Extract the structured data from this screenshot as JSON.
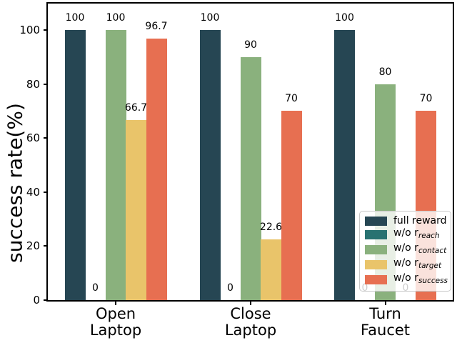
{
  "chart_data": {
    "type": "bar",
    "title": "",
    "xlabel": "",
    "ylabel": "success rate(%)",
    "ylim": [
      0,
      110
    ],
    "yticks": [
      0,
      20,
      40,
      60,
      80,
      100
    ],
    "grid": false,
    "legend_position": "lower right",
    "categories": [
      [
        "Open",
        "Laptop"
      ],
      [
        "Close",
        "Laptop"
      ],
      [
        "Turn",
        "Faucet"
      ]
    ],
    "series": [
      {
        "name": "full reward",
        "name_sub": "",
        "color": "#264653",
        "values": [
          100,
          100,
          100
        ],
        "value_labels": [
          "100",
          "100",
          "100"
        ]
      },
      {
        "name": "w/o r",
        "name_sub": "reach",
        "color": "#287271",
        "values": [
          0,
          0,
          0
        ],
        "value_labels": [
          "0",
          "0",
          "0"
        ]
      },
      {
        "name": "w/o r",
        "name_sub": "contact",
        "color": "#8ab17d",
        "values": [
          100,
          90,
          80
        ],
        "value_labels": [
          "100",
          "90",
          "80"
        ]
      },
      {
        "name": "w/o r",
        "name_sub": "target",
        "color": "#e9c46a",
        "values": [
          66.7,
          22.6,
          0
        ],
        "value_labels": [
          "66.7",
          "22.6",
          "0"
        ]
      },
      {
        "name": "w/o r",
        "name_sub": "success",
        "color": "#e76f51",
        "values": [
          96.7,
          70,
          70
        ],
        "value_labels": [
          "96.7",
          "70",
          "70"
        ]
      }
    ],
    "colors": {
      "axis": "#000000",
      "legend_border": "#c9c9c9",
      "background": "#ffffff"
    }
  }
}
